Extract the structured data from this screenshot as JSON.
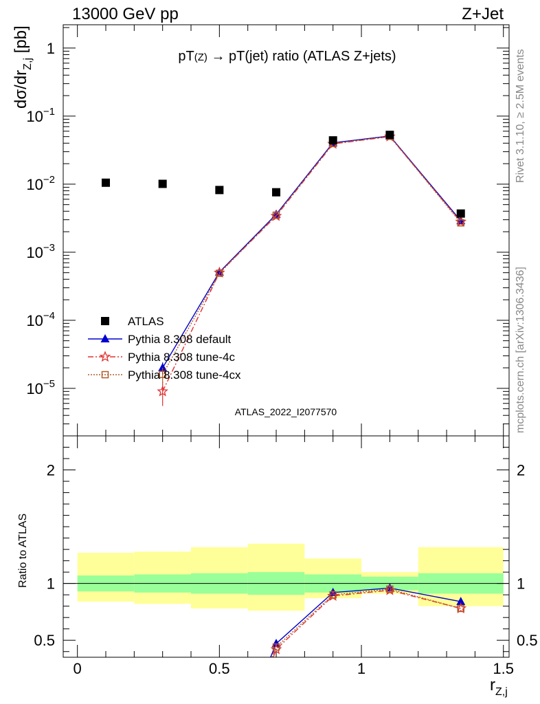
{
  "header": {
    "left": "13000 GeV pp",
    "right": "Z+Jet"
  },
  "side": {
    "rivet": "Rivet 3.1.10, ≥ 2.5M events",
    "mcplots": "mcplots.cern.ch [arXiv:1306.3436]"
  },
  "chart_data": [
    {
      "type": "scatter",
      "panel": "main",
      "title": "pT(Z) → pT(jet) ratio (ATLAS Z+jets)",
      "title_parts": {
        "pre": "pT",
        "sub": "(Z)",
        "post": " → pT(jet) ratio (ATLAS Z+jets)"
      },
      "ylabel": "dσ/dr",
      "ylabel_sub": "Z,j",
      "ylabel_unit": " [pb]",
      "yscale": "log",
      "ylim": [
        2e-06,
        2.2
      ],
      "xlim": [
        -0.05,
        1.52
      ],
      "watermark": "ATLAS_2022_I2077570",
      "yticks": [
        {
          "value": 1,
          "label": "1"
        },
        {
          "value": 0.1,
          "base": "10",
          "exp": "−1"
        },
        {
          "value": 0.01,
          "base": "10",
          "exp": "−2"
        },
        {
          "value": 0.001,
          "base": "10",
          "exp": "−3"
        },
        {
          "value": 0.0001,
          "base": "10",
          "exp": "−4"
        },
        {
          "value": 1e-05,
          "base": "10",
          "exp": "−5"
        }
      ],
      "legend_position": "bottom-left",
      "series": [
        {
          "name": "ATLAS",
          "marker": "square",
          "color": "#000000",
          "x": [
            0.1,
            0.3,
            0.5,
            0.7,
            0.9,
            1.1,
            1.35
          ],
          "y": [
            0.0105,
            0.0101,
            0.0082,
            0.0076,
            0.044,
            0.053,
            0.0037
          ]
        },
        {
          "name": "Pythia 8.308 default",
          "marker": "triangle",
          "color": "#0000cc",
          "line": "solid",
          "x": [
            0.3,
            0.5,
            0.7,
            0.9,
            1.1,
            1.35
          ],
          "y": [
            2e-05,
            0.00051,
            0.0036,
            0.0405,
            0.051,
            0.0029
          ],
          "yerr": [
            4e-06,
            0,
            0,
            0,
            0,
            0
          ]
        },
        {
          "name": "Pythia 8.308 tune-4c",
          "marker": "star",
          "color": "#e03030",
          "line": "dashdot",
          "x": [
            0.3,
            0.5,
            0.7,
            0.9,
            1.1,
            1.35
          ],
          "y": [
            9e-06,
            0.0005,
            0.0034,
            0.039,
            0.05,
            0.0028
          ],
          "yerr": [
            3.5e-06,
            0,
            0,
            0,
            0,
            0
          ]
        },
        {
          "name": "Pythia 8.308 tune-4cx",
          "marker": "open-square",
          "color": "#b05a28",
          "line": "dotted",
          "x": [
            0.3,
            0.5,
            0.7,
            0.9,
            1.1,
            1.35
          ],
          "y": [
            1.6e-05,
            0.00049,
            0.0035,
            0.0395,
            0.0505,
            0.0027
          ],
          "yerr": [
            4e-06,
            0,
            0,
            0,
            0,
            0
          ]
        }
      ]
    },
    {
      "type": "line",
      "panel": "ratio",
      "ylabel": "Ratio to ATLAS",
      "xlabel": "r",
      "xlabel_sub": "Z,j",
      "xlim": [
        -0.05,
        1.52
      ],
      "ylim": [
        0.35,
        2.3
      ],
      "xticks": [
        {
          "value": 0,
          "label": "0"
        },
        {
          "value": 0.5,
          "label": "0.5"
        },
        {
          "value": 1,
          "label": "1"
        },
        {
          "value": 1.5,
          "label": "1.5"
        }
      ],
      "yticks": [
        {
          "value": 0.5,
          "label": "0.5"
        },
        {
          "value": 1,
          "label": "1"
        },
        {
          "value": 2,
          "label": "2"
        }
      ],
      "bands": {
        "bins": [
          [
            0,
            0.2
          ],
          [
            0.2,
            0.4
          ],
          [
            0.4,
            0.6
          ],
          [
            0.6,
            0.8
          ],
          [
            0.8,
            1.0
          ],
          [
            1.0,
            1.2
          ],
          [
            1.2,
            1.5
          ]
        ],
        "inner_color": "#99ff99",
        "outer_color": "#ffff99",
        "inner": [
          [
            0.93,
            1.07
          ],
          [
            0.92,
            1.08
          ],
          [
            0.91,
            1.09
          ],
          [
            0.9,
            1.1
          ],
          [
            0.92,
            1.08
          ],
          [
            0.94,
            1.06
          ],
          [
            0.91,
            1.09
          ]
        ],
        "outer": [
          [
            0.84,
            1.27
          ],
          [
            0.82,
            1.28
          ],
          [
            0.78,
            1.32
          ],
          [
            0.76,
            1.35
          ],
          [
            0.87,
            1.22
          ],
          [
            0.91,
            1.1
          ],
          [
            0.8,
            1.32
          ]
        ]
      },
      "series": [
        {
          "name": "Pythia 8.308 default",
          "marker": "triangle",
          "color": "#0000cc",
          "line": "solid",
          "x": [
            0.7,
            0.9,
            1.1,
            1.35
          ],
          "y": [
            0.47,
            0.92,
            0.96,
            0.84
          ],
          "from_below_x": 0.68
        },
        {
          "name": "Pythia 8.308 tune-4c",
          "marker": "star",
          "color": "#e03030",
          "line": "dashdot",
          "x": [
            0.7,
            0.9,
            1.1,
            1.35
          ],
          "y": [
            0.42,
            0.89,
            0.94,
            0.78
          ],
          "from_below_x": 0.69
        },
        {
          "name": "Pythia 8.308 tune-4cx",
          "marker": "open-square",
          "color": "#b05a28",
          "line": "dotted",
          "x": [
            0.7,
            0.9,
            1.1,
            1.35
          ],
          "y": [
            0.44,
            0.9,
            0.95,
            0.78
          ],
          "from_below_x": 0.685
        }
      ]
    }
  ]
}
